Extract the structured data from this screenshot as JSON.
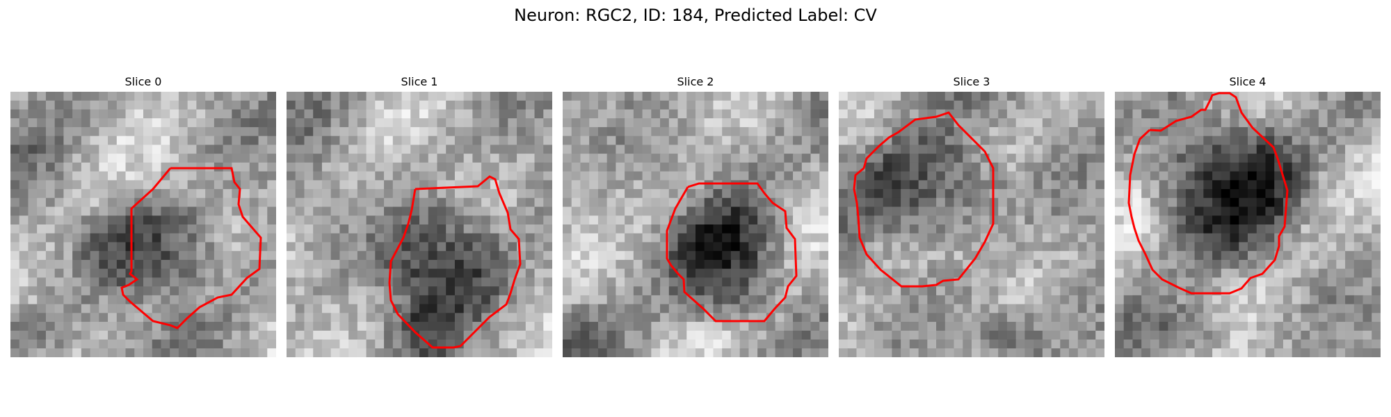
{
  "figure": {
    "title": "Neuron: RGC2, ID: 184, Predicted Label: CV"
  },
  "slices": [
    {
      "title": "Slice 0"
    },
    {
      "title": "Slice 1"
    },
    {
      "title": "Slice 2"
    },
    {
      "title": "Slice 3"
    },
    {
      "title": "Slice 4"
    }
  ],
  "colors": {
    "contour": "#ff0000",
    "image_colormap": "grayscale"
  }
}
